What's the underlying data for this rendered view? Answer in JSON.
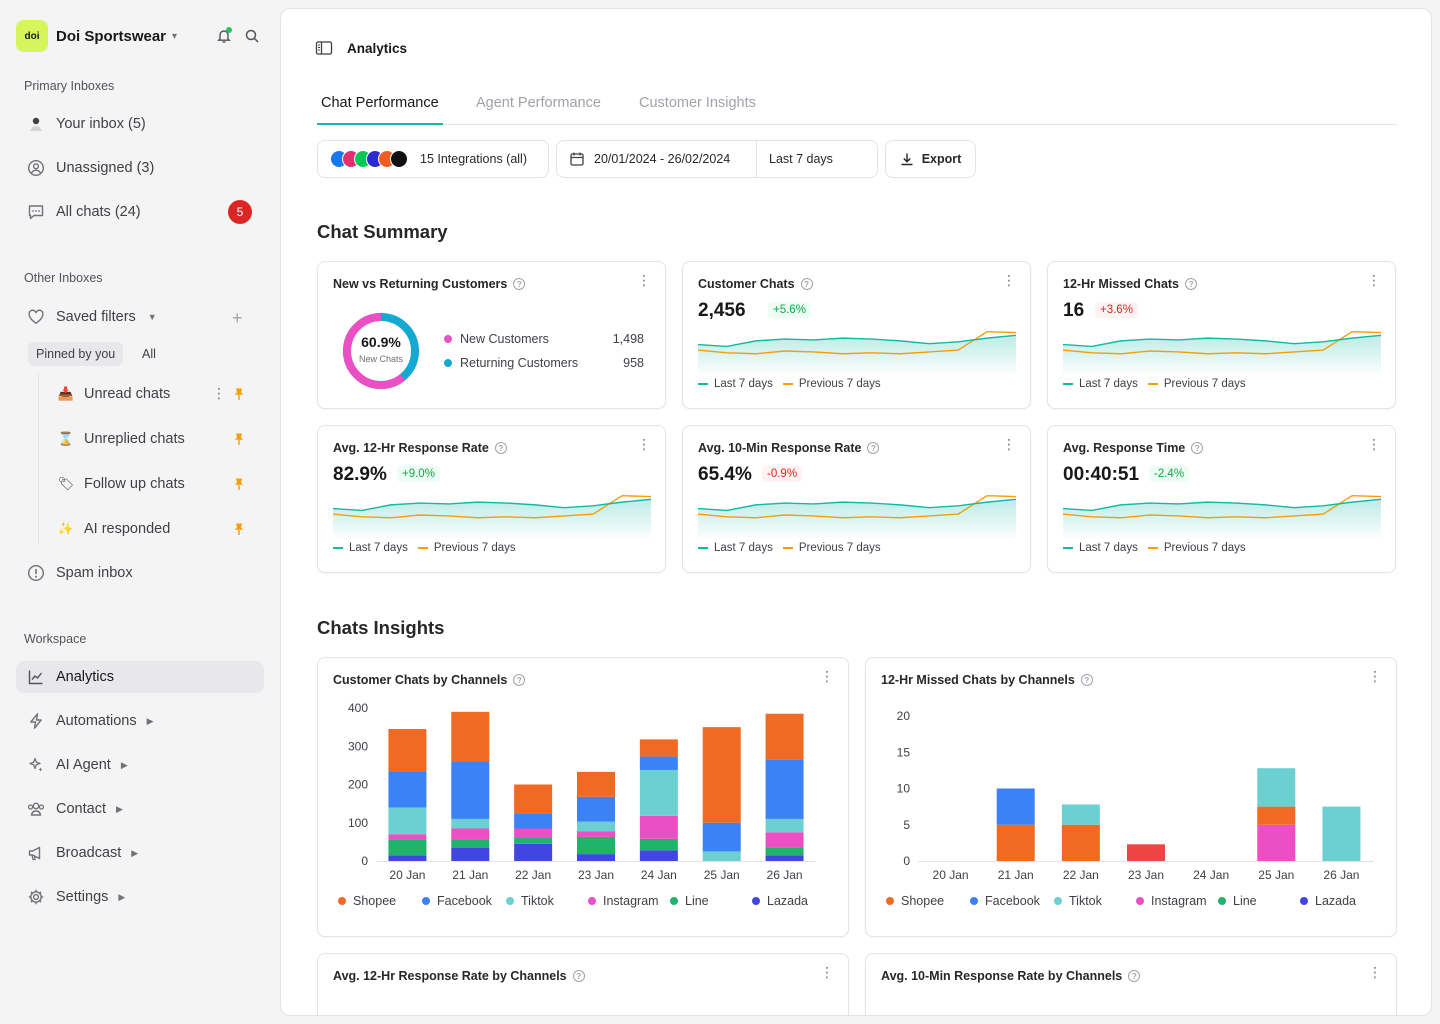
{
  "brand": {
    "logo_text": "doi",
    "name": "Doi Sportswear"
  },
  "sidebar": {
    "primary_label": "Primary Inboxes",
    "your_inbox": "Your inbox (5)",
    "unassigned": "Unassigned (3)",
    "all_chats": "All chats (24)",
    "all_chats_badge": "5",
    "other_label": "Other Inboxes",
    "saved_filters": "Saved filters",
    "pinned_by_you": "Pinned by you",
    "all": "All",
    "filters": [
      "Unread chats",
      "Unreplied chats",
      "Follow up chats",
      "AI responded"
    ],
    "spam": "Spam inbox",
    "workspace_label": "Workspace",
    "workspace": [
      "Analytics",
      "Automations",
      "AI Agent",
      "Contact",
      "Broadcast",
      "Settings"
    ]
  },
  "page": {
    "title": "Analytics",
    "tabs": [
      "Chat Performance",
      "Agent Performance",
      "Customer Insights"
    ],
    "integrations": "15 Integrations (all)",
    "date_range": "20/01/2024 - 26/02/2024",
    "period": "Last 7 days",
    "export": "Export",
    "summary_title": "Chat Summary",
    "insights_title": "Chats Insights"
  },
  "summary": {
    "nvr": {
      "title": "New vs Returning Customers",
      "percent": "60.9%",
      "sub": "New Chats",
      "new_label": "New Customers",
      "new_value": "1,498",
      "ret_label": "Returning Customers",
      "ret_value": "958",
      "new_fraction": 0.609
    },
    "legend_current": "Last 7 days",
    "legend_previous": "Previous 7 days",
    "metrics": [
      {
        "title": "Customer Chats",
        "value": "2,456",
        "delta": "+5.6%",
        "trend": "up"
      },
      {
        "title": "12-Hr Missed Chats",
        "value": "16",
        "delta": "+3.6%",
        "trend": "down"
      },
      {
        "title": "Avg. 12-Hr Response Rate",
        "value": "82.9%",
        "delta": "+9.0%",
        "trend": "up"
      },
      {
        "title": "Avg. 10-Min Response Rate",
        "value": "65.4%",
        "delta": "-0.9%",
        "trend": "down"
      },
      {
        "title": "Avg. Response Time",
        "value": "00:40:51",
        "delta": "-2.4%",
        "trend": "up"
      }
    ],
    "spark_current": [
      3.2,
      3.0,
      3.6,
      3.8,
      3.7,
      3.9,
      3.8,
      3.6,
      3.3,
      3.5,
      3.9,
      4.2
    ],
    "spark_previous": [
      2.6,
      2.3,
      2.2,
      2.5,
      2.4,
      2.2,
      2.3,
      2.2,
      2.4,
      2.6,
      4.6,
      4.5
    ]
  },
  "colors": {
    "shopee": "#f06a24",
    "facebook": "#3b82f6",
    "tiktok": "#6ccfd1",
    "instagram": "#ec4fc4",
    "line": "#1fb46a",
    "lazada": "#4246e0",
    "accent": "#14b8a6",
    "orange": "#f59e0b",
    "red_bar": "#ef4444"
  },
  "chart_data": [
    {
      "type": "bar",
      "stacked": true,
      "title": "Customer Chats by Channels",
      "categories": [
        "20 Jan",
        "21 Jan",
        "22 Jan",
        "23 Jan",
        "24 Jan",
        "25 Jan",
        "26 Jan"
      ],
      "ylim": [
        0,
        400
      ],
      "yticks": [
        0,
        100,
        200,
        300,
        400
      ],
      "series": [
        {
          "name": "Lazada",
          "values": [
            15,
            35,
            45,
            18,
            28,
            0,
            15
          ]
        },
        {
          "name": "Line",
          "values": [
            40,
            20,
            15,
            45,
            30,
            0,
            20
          ]
        },
        {
          "name": "Instagram",
          "values": [
            15,
            30,
            25,
            15,
            60,
            0,
            40
          ]
        },
        {
          "name": "Tiktok",
          "values": [
            70,
            25,
            0,
            25,
            120,
            25,
            35
          ]
        },
        {
          "name": "Facebook",
          "values": [
            95,
            150,
            40,
            65,
            35,
            75,
            155
          ]
        },
        {
          "name": "Shopee",
          "values": [
            110,
            130,
            75,
            65,
            45,
            250,
            120
          ]
        }
      ],
      "legend": [
        "Shopee",
        "Facebook",
        "Tiktok",
        "Instagram",
        "Line",
        "Lazada"
      ]
    },
    {
      "type": "bar",
      "stacked": true,
      "title": "12-Hr Missed Chats by Channels",
      "categories": [
        "20 Jan",
        "21 Jan",
        "22 Jan",
        "23 Jan",
        "24 Jan",
        "25 Jan",
        "26 Jan"
      ],
      "ylim": [
        0,
        20
      ],
      "yticks": [
        0,
        5,
        10,
        15,
        20
      ],
      "series": [
        {
          "name": "Instagram",
          "values": [
            0,
            0,
            0,
            0,
            0,
            5,
            0
          ]
        },
        {
          "name": "Shopee",
          "values": [
            0,
            5,
            5,
            2.3,
            0,
            2.5,
            0
          ]
        },
        {
          "name": "Facebook",
          "values": [
            0,
            5,
            0,
            0,
            0,
            0,
            0
          ]
        },
        {
          "name": "Tiktok",
          "values": [
            0,
            0,
            2.8,
            0,
            0,
            5.3,
            7.5
          ]
        }
      ],
      "legend": [
        "Shopee",
        "Facebook",
        "Tiktok",
        "Instagram",
        "Line",
        "Lazada"
      ]
    }
  ],
  "bottom_cards": [
    "Avg. 12-Hr Response Rate by Channels",
    "Avg. 10-Min Response Rate by Channels"
  ]
}
